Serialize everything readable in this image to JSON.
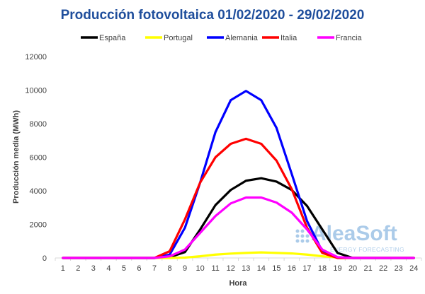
{
  "chart_data": {
    "type": "line",
    "title": "Producción fotovoltaica 01/02/2020 - 29/02/2020",
    "xlabel": "Hora",
    "ylabel": "Producción media (MWh)",
    "ylim": [
      0,
      12000
    ],
    "yticks": [
      "0",
      "2000",
      "4000",
      "6000",
      "8000",
      "10000",
      "12000"
    ],
    "grid": false,
    "legend_position": "top",
    "x": [
      1,
      2,
      3,
      4,
      5,
      6,
      7,
      8,
      9,
      10,
      11,
      12,
      13,
      14,
      15,
      16,
      17,
      18,
      19,
      20,
      21,
      22,
      23,
      24
    ],
    "series": [
      {
        "name": "España",
        "color": "#000000",
        "values": [
          0,
          0,
          0,
          0,
          0,
          0,
          0,
          50,
          350,
          1700,
          3150,
          4050,
          4600,
          4750,
          4550,
          4050,
          3100,
          1700,
          300,
          0,
          0,
          0,
          0,
          0
        ]
      },
      {
        "name": "Portugal",
        "color": "#ffff00",
        "values": [
          0,
          0,
          0,
          0,
          0,
          0,
          0,
          0,
          20,
          100,
          200,
          260,
          300,
          330,
          300,
          270,
          200,
          100,
          30,
          0,
          0,
          0,
          0,
          0
        ]
      },
      {
        "name": "Alemania",
        "color": "#0000ff",
        "values": [
          0,
          0,
          0,
          0,
          0,
          0,
          0,
          200,
          1800,
          4500,
          7500,
          9400,
          9950,
          9400,
          7750,
          5000,
          2200,
          400,
          10,
          0,
          0,
          0,
          0,
          0
        ]
      },
      {
        "name": "Italia",
        "color": "#ff0000",
        "values": [
          0,
          0,
          0,
          0,
          0,
          0,
          0,
          400,
          2300,
          4500,
          6000,
          6800,
          7100,
          6800,
          5800,
          4100,
          1800,
          300,
          0,
          0,
          0,
          0,
          0,
          0
        ]
      },
      {
        "name": "Francia",
        "color": "#ff00ff",
        "values": [
          0,
          0,
          0,
          0,
          0,
          0,
          0,
          100,
          500,
          1500,
          2500,
          3250,
          3600,
          3600,
          3300,
          2700,
          1700,
          500,
          50,
          0,
          0,
          0,
          0,
          0
        ]
      }
    ]
  },
  "colors": {
    "title": "#1f4e9c",
    "axis": "#d9d9d9",
    "text": "#404040",
    "watermark": "#9dc3e6"
  },
  "watermark": {
    "main": "AleaSoft",
    "sub": "ENERGY FORECASTING"
  }
}
